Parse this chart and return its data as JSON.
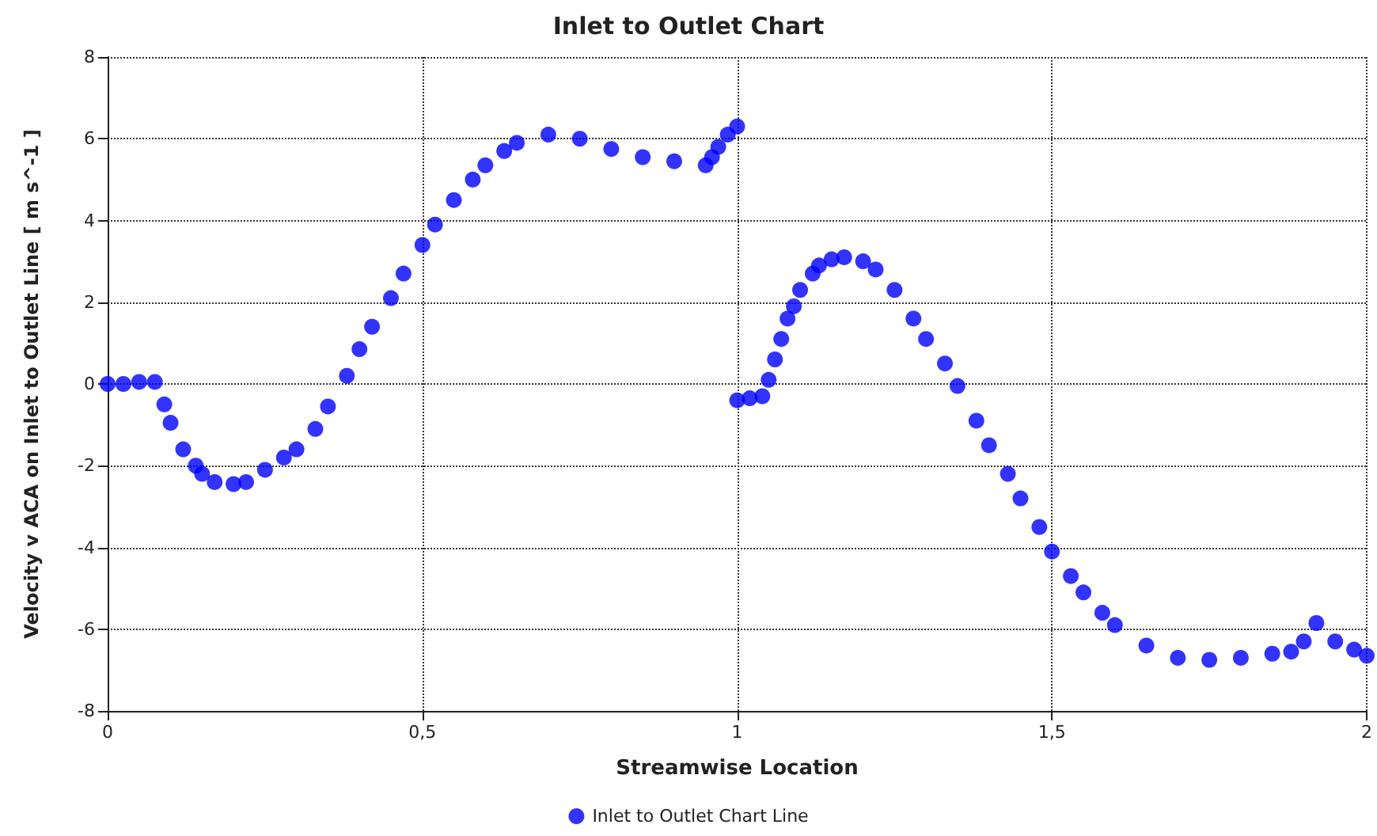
{
  "chart_data": {
    "type": "scatter",
    "title": "Inlet to Outlet Chart",
    "xlabel": "Streamwise Location",
    "ylabel": "Velocity v ACA on Inlet to Outlet Line [ m s^-1 ]",
    "xlim": [
      0,
      2
    ],
    "xticks": [
      0,
      {
        "value": 0.5,
        "label": "0,5"
      },
      1,
      {
        "value": 1.5,
        "label": "1,5"
      },
      2
    ],
    "ylim": [
      -8,
      8
    ],
    "yticks": [
      -8,
      -6,
      -4,
      -2,
      0,
      2,
      4,
      6,
      8
    ],
    "grid": true,
    "legend": "bottom",
    "marker": "circle",
    "series": [
      {
        "name": "Inlet to Outlet Chart Line",
        "color": "#0000ff",
        "x": [
          0,
          0.025,
          0.05,
          0.075,
          0.09,
          0.1,
          0.12,
          0.14,
          0.15,
          0.17,
          0.2,
          0.22,
          0.25,
          0.28,
          0.3,
          0.33,
          0.35,
          0.38,
          0.4,
          0.42,
          0.45,
          0.47,
          0.5,
          0.52,
          0.55,
          0.58,
          0.6,
          0.63,
          0.65,
          0.7,
          0.75,
          0.8,
          0.85,
          0.9,
          0.95,
          0.96,
          0.97,
          0.985,
          1.0,
          1.0,
          1.02,
          1.04,
          1.05,
          1.06,
          1.07,
          1.08,
          1.09,
          1.1,
          1.12,
          1.13,
          1.15,
          1.17,
          1.2,
          1.22,
          1.25,
          1.28,
          1.3,
          1.33,
          1.35,
          1.38,
          1.4,
          1.43,
          1.45,
          1.48,
          1.5,
          1.53,
          1.55,
          1.58,
          1.6,
          1.65,
          1.7,
          1.75,
          1.8,
          1.85,
          1.88,
          1.9,
          1.92,
          1.95,
          1.98,
          2.0
        ],
        "values": [
          0,
          0,
          0.05,
          0.05,
          -0.5,
          -0.95,
          -1.6,
          -2.0,
          -2.2,
          -2.4,
          -2.45,
          -2.4,
          -2.1,
          -1.8,
          -1.6,
          -1.1,
          -0.55,
          0.2,
          0.85,
          1.4,
          2.1,
          2.7,
          3.4,
          3.9,
          4.5,
          5.0,
          5.35,
          5.7,
          5.9,
          6.1,
          6.0,
          5.75,
          5.55,
          5.45,
          5.35,
          5.55,
          5.8,
          6.1,
          6.3,
          -0.4,
          -0.35,
          -0.3,
          0.1,
          0.6,
          1.1,
          1.6,
          1.9,
          2.3,
          2.7,
          2.9,
          3.05,
          3.1,
          3.0,
          2.8,
          2.3,
          1.6,
          1.1,
          0.5,
          -0.05,
          -0.9,
          -1.5,
          -2.2,
          -2.8,
          -3.5,
          -4.1,
          -4.7,
          -5.1,
          -5.6,
          -5.9,
          -6.4,
          -6.7,
          -6.75,
          -6.7,
          -6.6,
          -6.55,
          -6.3,
          -5.85,
          -6.3,
          -6.5,
          -6.65
        ]
      }
    ]
  }
}
